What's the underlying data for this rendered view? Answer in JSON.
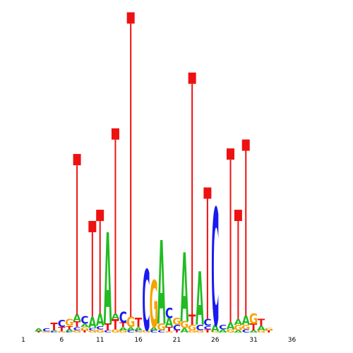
{
  "colors": {
    "A": "#22bb22",
    "C": "#1a1aee",
    "G": "#f5a300",
    "T": "#ee1111"
  },
  "chart_data": {
    "type": "sequence-logo",
    "title": "",
    "xlabel": "",
    "ylabel": "",
    "x_tick_labels": [
      1,
      6,
      11,
      16,
      21,
      26,
      31,
      36
    ],
    "ylim_bits": [
      0,
      2
    ],
    "positions": [
      {
        "pos": 1,
        "letters": []
      },
      {
        "pos": 2,
        "letters": []
      },
      {
        "pos": 3,
        "letters": [
          [
            "T",
            0.01
          ],
          [
            "A",
            0.03
          ]
        ]
      },
      {
        "pos": 4,
        "letters": [
          [
            "G",
            0.01
          ],
          [
            "C",
            0.03
          ]
        ]
      },
      {
        "pos": 5,
        "letters": [
          [
            "C",
            0.01
          ],
          [
            "A",
            0.01
          ],
          [
            "T",
            0.07
          ]
        ]
      },
      {
        "pos": 6,
        "letters": [
          [
            "G",
            0.01
          ],
          [
            "T",
            0.04
          ],
          [
            "C",
            0.06
          ]
        ]
      },
      {
        "pos": 7,
        "letters": [
          [
            "C",
            0.01
          ],
          [
            "A",
            0.02
          ],
          [
            "T",
            0.03
          ],
          [
            "G",
            0.06
          ]
        ]
      },
      {
        "pos": 8,
        "letters": [
          [
            "G",
            0.02
          ],
          [
            "C",
            0.03
          ],
          [
            "T",
            0.05
          ],
          [
            "A",
            0.06
          ]
        ],
        "stem": 1.55
      },
      {
        "pos": 9,
        "letters": [
          [
            "T",
            0.02
          ],
          [
            "G",
            0.03
          ],
          [
            "A",
            0.03
          ],
          [
            "C",
            0.07
          ]
        ]
      },
      {
        "pos": 10,
        "letters": [
          [
            "G",
            0.02
          ],
          [
            "C",
            0.02
          ],
          [
            "A",
            0.1
          ]
        ],
        "stem": 0.95
      },
      {
        "pos": 11,
        "letters": [
          [
            "G",
            0.03
          ],
          [
            "C",
            0.03
          ],
          [
            "A",
            0.11
          ]
        ],
        "stem": 1.05
      },
      {
        "pos": 12,
        "letters": [
          [
            "C",
            0.02
          ],
          [
            "T",
            0.06
          ],
          [
            "A",
            0.82
          ]
        ]
      },
      {
        "pos": 13,
        "letters": [
          [
            "G",
            0.03
          ],
          [
            "T",
            0.09
          ],
          [
            "A",
            0.05
          ]
        ],
        "stem": 1.78
      },
      {
        "pos": 14,
        "letters": [
          [
            "G",
            0.02
          ],
          [
            "A",
            0.03
          ],
          [
            "T",
            0.04
          ],
          [
            "C",
            0.1
          ]
        ]
      },
      {
        "pos": 15,
        "letters": [
          [
            "C",
            0.02
          ],
          [
            "A",
            0.03
          ],
          [
            "G",
            0.09
          ]
        ],
        "stem": 2.82
      },
      {
        "pos": 16,
        "letters": [
          [
            "G",
            0.01
          ],
          [
            "C",
            0.01
          ],
          [
            "A",
            0.03
          ],
          [
            "T",
            0.08
          ]
        ]
      },
      {
        "pos": 17,
        "letters": [
          [
            "G",
            0.02
          ],
          [
            "C",
            0.55
          ]
        ]
      },
      {
        "pos": 18,
        "letters": [
          [
            "C",
            0.02
          ],
          [
            "A",
            0.03
          ],
          [
            "G",
            0.42
          ]
        ]
      },
      {
        "pos": 19,
        "letters": [
          [
            "C",
            0.02
          ],
          [
            "G",
            0.06
          ],
          [
            "A",
            0.75
          ]
        ]
      },
      {
        "pos": 20,
        "letters": [
          [
            "G",
            0.01
          ],
          [
            "T",
            0.04
          ],
          [
            "A",
            0.08
          ],
          [
            "C",
            0.09
          ]
        ]
      },
      {
        "pos": 21,
        "letters": [
          [
            "T",
            0.02
          ],
          [
            "C",
            0.05
          ],
          [
            "G",
            0.06
          ]
        ]
      },
      {
        "pos": 22,
        "letters": [
          [
            "A",
            0.04
          ],
          [
            "G",
            0.06
          ],
          [
            "A",
            0.62
          ]
        ]
      },
      {
        "pos": 23,
        "letters": [
          [
            "G",
            0.02
          ],
          [
            "G",
            0.05
          ],
          [
            "T",
            0.09
          ]
        ],
        "stem": 2.28
      },
      {
        "pos": 24,
        "letters": [
          [
            "G",
            0.02
          ],
          [
            "C",
            0.05
          ],
          [
            "A",
            0.48
          ]
        ]
      },
      {
        "pos": 25,
        "letters": [
          [
            "T",
            0.03
          ],
          [
            "C",
            0.03
          ],
          [
            "C",
            0.06
          ]
        ],
        "stem": 1.25
      },
      {
        "pos": 26,
        "letters": [
          [
            "G",
            0.01
          ],
          [
            "A",
            0.06
          ],
          [
            "C",
            1.05
          ]
        ]
      },
      {
        "pos": 27,
        "letters": [
          [
            "A",
            0.03
          ],
          [
            "C",
            0.04
          ]
        ]
      },
      {
        "pos": 28,
        "letters": [
          [
            "G",
            0.03
          ],
          [
            "A",
            0.06
          ]
        ],
        "stem": 1.6
      },
      {
        "pos": 29,
        "letters": [
          [
            "A",
            0.02
          ],
          [
            "G",
            0.05
          ],
          [
            "A",
            0.05
          ]
        ],
        "stem": 1.05
      },
      {
        "pos": 30,
        "letters": [
          [
            "C",
            0.03
          ],
          [
            "G",
            0.04
          ],
          [
            "A",
            0.08
          ]
        ],
        "stem": 1.68
      },
      {
        "pos": 31,
        "letters": [
          [
            "A",
            0.02
          ],
          [
            "T",
            0.06
          ],
          [
            "G",
            0.09
          ]
        ]
      },
      {
        "pos": 32,
        "letters": [
          [
            "G",
            0.02
          ],
          [
            "A",
            0.04
          ],
          [
            "T",
            0.06
          ]
        ]
      },
      {
        "pos": 33,
        "letters": [
          [
            "T",
            0.02
          ],
          [
            "G",
            0.02
          ]
        ]
      },
      {
        "pos": 34,
        "letters": []
      },
      {
        "pos": 35,
        "letters": []
      },
      {
        "pos": 36,
        "letters": []
      }
    ]
  }
}
